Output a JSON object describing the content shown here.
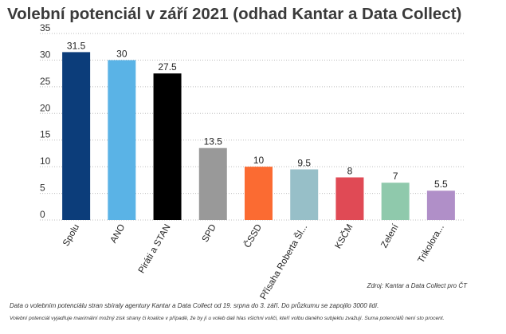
{
  "title": "Volební potenciál v září 2021 (odhad Kantar a Data Collect)",
  "source": "Zdroj: Kantar a Data Collect pro ČT",
  "note1": "Data o volebním potenciálu stran sbíraly agentury Kantar a Data Collect od 19. srpna do 3. září. Do průzkumu se zapojilo 3000 lidí.",
  "note2": "Volební potenciál vyjadřuje maximální možný zisk strany či koalice v případě, že by jí u voleb dali hlas všichni voliči, kteří volbu daného subjektu zvažují. Suma potenciálů není sto procent.",
  "chart_data": {
    "type": "bar",
    "categories": [
      "Spolu",
      "ANO",
      "Piráti a STAN",
      "SPD",
      "ČSSD",
      "Přísaha Roberta Šl...",
      "KSČM",
      "Zelení",
      "Trikolora..."
    ],
    "values": [
      31.5,
      30,
      27.5,
      13.5,
      10,
      9.5,
      8,
      7,
      5.5
    ],
    "value_labels": [
      "31.5",
      "30",
      "27.5",
      "13.5",
      "10",
      "9.5",
      "8",
      "7",
      "5.5"
    ],
    "colors": [
      "#0c3d7a",
      "#5ab3e6",
      "#000000",
      "#999999",
      "#fb6b32",
      "#97bfc8",
      "#e04a55",
      "#8fc9ac",
      "#b08fc8"
    ],
    "ylim": [
      0,
      35
    ],
    "yticks": [
      0,
      5,
      10,
      15,
      20,
      25,
      30,
      35
    ],
    "ytick_labels": [
      "0",
      "5",
      "10",
      "15",
      "20",
      "25",
      "30",
      "35"
    ],
    "grid": true,
    "xlabel": "",
    "ylabel": ""
  }
}
